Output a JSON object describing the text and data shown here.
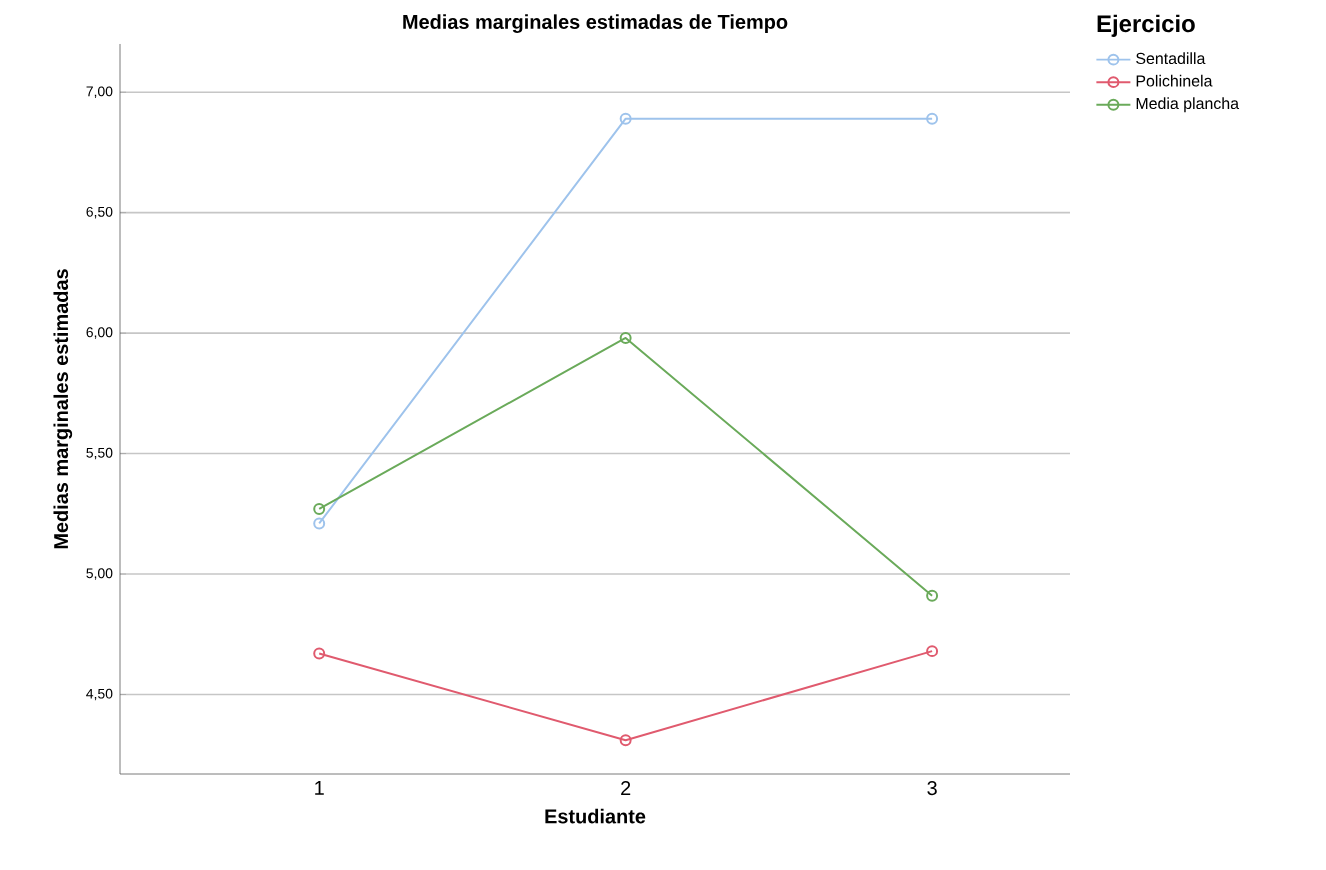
{
  "chart_data": {
    "type": "line",
    "title": "Medias marginales estimadas de Tiempo",
    "xlabel": "Estudiante",
    "ylabel": "Medias marginales estimadas",
    "legend_title": "Ejercicio",
    "categories": [
      "1",
      "2",
      "3"
    ],
    "series": [
      {
        "name": "Sentadilla",
        "color": "#9ec3ec",
        "values": [
          5.21,
          6.89,
          6.89
        ]
      },
      {
        "name": "Polichinela",
        "color": "#e05a6e",
        "values": [
          4.67,
          4.31,
          4.68
        ]
      },
      {
        "name": "Media plancha",
        "color": "#6aaa5a",
        "values": [
          5.27,
          5.98,
          4.91
        ]
      }
    ],
    "ylim": [
      4.17,
      7.2
    ],
    "yticks": [
      {
        "value": 4.5,
        "label": "4,50"
      },
      {
        "value": 5,
        "label": "5,00"
      },
      {
        "value": 5.5,
        "label": "5,50"
      },
      {
        "value": 6,
        "label": "6,00"
      },
      {
        "value": 6.5,
        "label": "6,50"
      },
      {
        "value": 7,
        "label": "7,00"
      }
    ],
    "grid": "y",
    "legend": "right",
    "marker": "circle",
    "line_style": "solid"
  }
}
